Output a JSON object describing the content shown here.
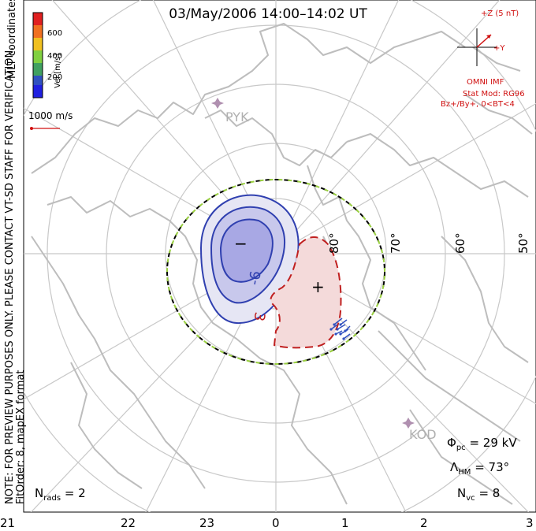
{
  "title": "03/May/2006 14:00–14:02 UT",
  "coordinate_system": "MLT coordinates",
  "preview_note": "NOTE: FOR PREVIEW PURPOSES ONLY. PLEASE CONTACT VT-SD STAFF FOR VERIFICATION.",
  "fit_order": "FitOrder: 8, mapEX format",
  "color_scale": {
    "label": "Vel [m/s]",
    "ticks": [
      "600",
      "400",
      "200"
    ],
    "colors": [
      "#e02020",
      "#f07020",
      "#f0c020",
      "#80d040",
      "#40a060",
      "#3050c0",
      "#2020e0"
    ]
  },
  "vector_reference": "1000 m/s",
  "imf": {
    "z_label": "+Z (5 nT)",
    "y_label": "+Y",
    "source": "OMNI IMF",
    "stat_mod": "Stat Mod: RG96",
    "condition": "Bz+/By+, 0<BT<4"
  },
  "stations": [
    {
      "name": "PYK",
      "color": "#b090b0"
    },
    {
      "name": "KOD",
      "color": "#b090b0"
    }
  ],
  "latitude_labels": [
    "80°",
    "70°",
    "60°",
    "50°"
  ],
  "mlt_labels": [
    "21",
    "22",
    "23",
    "0",
    "1",
    "2",
    "3"
  ],
  "contours": {
    "negative_label": "-6",
    "positive_label": "3",
    "min_symbol": "−",
    "max_symbol": "+"
  },
  "stats": {
    "phi_symbol": "Φ",
    "phi_sub": "pc",
    "phi_value": "= 29 kV",
    "lambda_symbol": "Λ",
    "lambda_sub": "HM",
    "lambda_value": "= 73°",
    "nvc_symbol": "N",
    "nvc_sub": "vc",
    "nvc_value": "= 8",
    "nrads_symbol": "N",
    "nrads_sub": "rads",
    "nrads_value": "= 2"
  }
}
